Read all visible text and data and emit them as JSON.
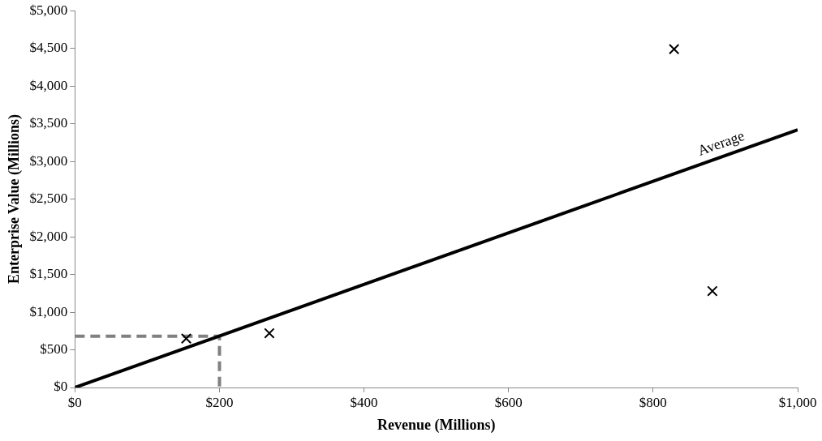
{
  "chart_data": {
    "type": "scatter",
    "xlabel": "Revenue (Millions)",
    "ylabel": "Enterprise Value (Millions)",
    "series": [
      {
        "color": "#000000",
        "marker": "cross",
        "x": [
          154,
          269,
          829,
          882
        ],
        "values": [
          650,
          720,
          4490,
          1280
        ]
      },
      {
        "type": "line",
        "marker": "none",
        "color": "#000000",
        "x": [
          0,
          1000
        ],
        "values": [
          0,
          3420
        ]
      },
      {
        "type": "line",
        "marker": "none",
        "color": "#808080",
        "line_style": "dashed",
        "x": [
          0,
          200,
          200
        ],
        "values": [
          680,
          680,
          0
        ]
      }
    ],
    "grid": false,
    "legend": false,
    "xlim": [
      0,
      1000
    ],
    "xticks": [
      {
        "value": 0,
        "label": "$0"
      },
      {
        "value": 200,
        "label": "$200"
      },
      {
        "value": 400,
        "label": "$400"
      },
      {
        "value": 600,
        "label": "$600"
      },
      {
        "value": 800,
        "label": "$800"
      },
      {
        "value": 1000,
        "label": "$1,000"
      }
    ],
    "ylim": [
      0,
      5000
    ],
    "yticks": [
      {
        "value": 0,
        "label": "$0"
      },
      {
        "value": 500,
        "label": "$500"
      },
      {
        "value": 1000,
        "label": "$1,000"
      },
      {
        "value": 1500,
        "label": "$1,500"
      },
      {
        "value": 2000,
        "label": "$2,000"
      },
      {
        "value": 2500,
        "label": "$2,500"
      },
      {
        "value": 3000,
        "label": "$3,000"
      },
      {
        "value": 3500,
        "label": "$3,500"
      },
      {
        "value": 4000,
        "label": "$4,000"
      },
      {
        "value": 4500,
        "label": "$4,500"
      },
      {
        "value": 5000,
        "label": "$5,000"
      }
    ],
    "annotations": [
      {
        "text": "Average",
        "x": 900,
        "y": 3080
      }
    ]
  }
}
